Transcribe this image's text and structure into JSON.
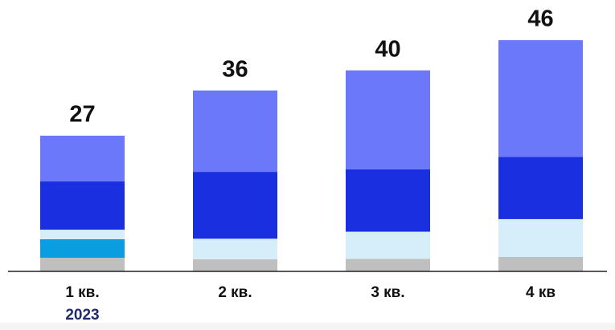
{
  "chart_data": {
    "type": "stacked_bar",
    "categories": [
      "1 кв.",
      "2 кв.",
      "3 кв.",
      "4 кв"
    ],
    "year_label": "2023",
    "series": [
      {
        "color": "#bfbfbf",
        "values": [
          2.7,
          2.4,
          2.5,
          2.9
        ]
      },
      {
        "color": "#0a9de0",
        "values": [
          3.7,
          0,
          0,
          0
        ]
      },
      {
        "color": "#d6eefa",
        "values": [
          1.9,
          4.1,
          5.4,
          7.5
        ]
      },
      {
        "color": "#1a2fe0",
        "values": [
          9.6,
          13.3,
          12.4,
          12.4
        ]
      },
      {
        "color": "#6b78fa",
        "values": [
          9.1,
          16.2,
          19.7,
          23.2
        ]
      }
    ],
    "totals": [
      27,
      36,
      40,
      46
    ],
    "ylim": [
      0,
      54
    ]
  }
}
